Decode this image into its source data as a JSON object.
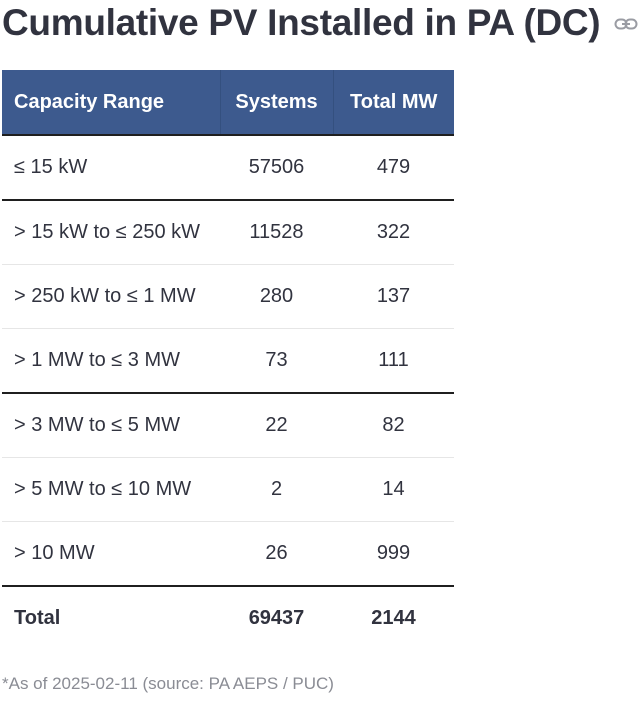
{
  "header": {
    "title": "Cumulative PV Installed in PA (DC)",
    "link_icon": "link-icon"
  },
  "table": {
    "columns": [
      "Capacity Range",
      "Systems",
      "Total MW"
    ],
    "rows": [
      {
        "range": "≤ 15 kW",
        "systems": "57506",
        "total_mw": "479"
      },
      {
        "range": "> 15 kW to ≤ 250 kW",
        "systems": "11528",
        "total_mw": "322"
      },
      {
        "range": "> 250 kW to ≤ 1 MW",
        "systems": "280",
        "total_mw": "137"
      },
      {
        "range": "> 1 MW to ≤ 3 MW",
        "systems": "73",
        "total_mw": "111"
      },
      {
        "range": "> 3 MW to ≤ 5 MW",
        "systems": "22",
        "total_mw": "82"
      },
      {
        "range": "> 5 MW to ≤ 10 MW",
        "systems": "2",
        "total_mw": "14"
      },
      {
        "range": "> 10 MW",
        "systems": "26",
        "total_mw": "999"
      }
    ],
    "total": {
      "label": "Total",
      "systems": "69437",
      "total_mw": "2144"
    }
  },
  "footnote": "*As of 2025-02-11 (source: PA AEPS / PUC)",
  "colors": {
    "header_bg": "#3d5a8e",
    "header_text": "#ffffff",
    "text": "#31333f",
    "footnote": "#8a8c94"
  }
}
